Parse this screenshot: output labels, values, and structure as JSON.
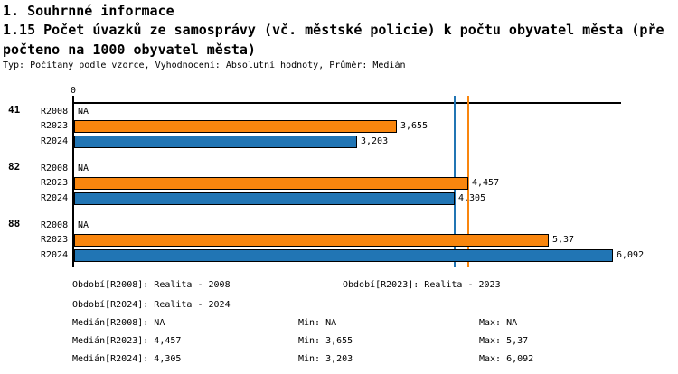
{
  "header": {
    "section_title": "1. Souhrnné informace",
    "indicator_title_line1": "1.15 Počet úvazků ze samosprávy (vč. městské policie) k počtu obyvatel města (pře",
    "indicator_title_line2": "počteno na 1000 obyvatel města)",
    "meta": "Typ: Počítaný podle vzorce, Vyhodnocení: Absolutní hodnoty, Průměr: Medián"
  },
  "chart_data": {
    "type": "bar",
    "orientation": "horizontal",
    "axis_origin_label": "0",
    "xlim_start": 0,
    "series_colors": {
      "R2023": "#f9860e",
      "R2024": "#2175b4"
    },
    "groups": [
      {
        "label": "41",
        "bars": [
          {
            "series": "R2008",
            "value": null,
            "value_label": "NA"
          },
          {
            "series": "R2023",
            "value": 3.655,
            "value_label": "3,655"
          },
          {
            "series": "R2024",
            "value": 3.203,
            "value_label": "3,203"
          }
        ]
      },
      {
        "label": "82",
        "bars": [
          {
            "series": "R2008",
            "value": null,
            "value_label": "NA"
          },
          {
            "series": "R2023",
            "value": 4.457,
            "value_label": "4,457"
          },
          {
            "series": "R2024",
            "value": 4.305,
            "value_label": "4,305"
          }
        ]
      },
      {
        "label": "88",
        "bars": [
          {
            "series": "R2008",
            "value": null,
            "value_label": "NA"
          },
          {
            "series": "R2023",
            "value": 5.37,
            "value_label": "5,37"
          },
          {
            "series": "R2024",
            "value": 6.092,
            "value_label": "6,092"
          }
        ]
      }
    ],
    "reference_lines": [
      {
        "name": "median-r2024",
        "value": 4.305,
        "color": "#2175b4"
      },
      {
        "name": "median-r2023",
        "value": 4.457,
        "color": "#f9860e"
      }
    ]
  },
  "stats": {
    "rows": [
      {
        "left": "Období[R2008]: Realita - 2008",
        "mid": "Období[R2023]: Realita - 2023"
      },
      {
        "left": "Období[R2024]: Realita - 2024"
      },
      {
        "left": "Medián[R2008]: NA",
        "min": "Min: NA",
        "max": "Max: NA"
      },
      {
        "left": "Medián[R2023]: 4,457",
        "min": "Min: 3,655",
        "max": "Max: 5,37"
      },
      {
        "left": "Medián[R2024]: 4,305",
        "min": "Min: 3,203",
        "max": "Max: 6,092"
      }
    ]
  }
}
